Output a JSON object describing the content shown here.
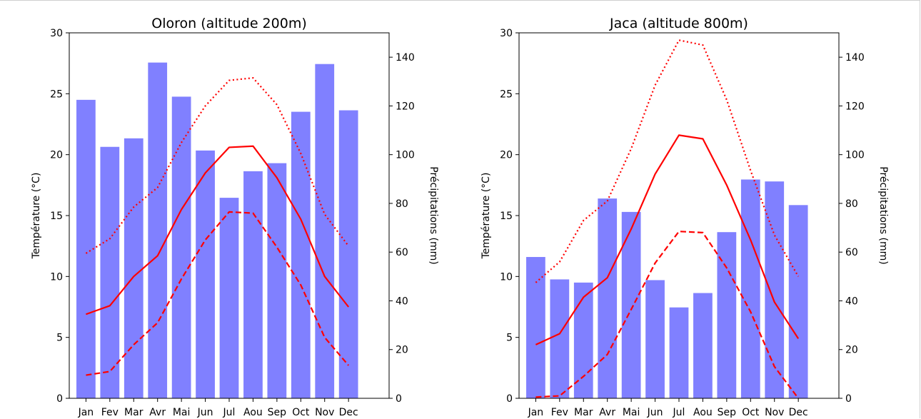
{
  "chart_data": [
    {
      "type": "bar",
      "title": "Oloron (altitude 200m)",
      "categories": [
        "Jan",
        "Fev",
        "Mar",
        "Avr",
        "Mai",
        "Jun",
        "Jul",
        "Aou",
        "Sep",
        "Oct",
        "Nov",
        "Dec"
      ],
      "ylabel": "Température (°C)",
      "y2label": "Précipitations (mm)",
      "ylim": [
        0,
        30
      ],
      "y2lim": [
        0,
        150
      ],
      "yticks": [
        0,
        5,
        10,
        15,
        20,
        25,
        30
      ],
      "y2ticks": [
        0,
        20,
        40,
        60,
        80,
        100,
        120,
        140
      ],
      "bar_color": "#8080ff",
      "line_color": "#ff0000",
      "series": [
        {
          "kind": "bar",
          "axis": "right",
          "values": [
            122.5,
            103.2,
            106.7,
            137.8,
            123.8,
            101.7,
            82.3,
            93.2,
            96.5,
            117.6,
            137.2,
            118.2
          ]
        },
        {
          "kind": "line",
          "style": "solid",
          "axis": "left",
          "values": [
            6.9,
            7.6,
            10.0,
            11.7,
            15.5,
            18.5,
            20.6,
            20.7,
            18.1,
            14.7,
            10.0,
            7.5
          ]
        },
        {
          "kind": "line",
          "style": "dashed",
          "axis": "left",
          "values": [
            1.9,
            2.2,
            4.4,
            6.2,
            9.8,
            13.0,
            15.3,
            15.2,
            12.4,
            9.3,
            5.0,
            2.7
          ]
        },
        {
          "kind": "line",
          "style": "dotted",
          "axis": "left",
          "values": [
            11.9,
            13.1,
            15.7,
            17.3,
            21.0,
            24.0,
            26.1,
            26.3,
            24.1,
            20.1,
            15.1,
            12.5
          ]
        }
      ]
    },
    {
      "type": "bar",
      "title": "Jaca (altitude 800m)",
      "categories": [
        "Jan",
        "Fev",
        "Mar",
        "Avr",
        "Mai",
        "Jun",
        "Jul",
        "Aou",
        "Sep",
        "Oct",
        "Nov",
        "Dec"
      ],
      "ylabel": "Température (°C)",
      "y2label": "Précipitations (mm)",
      "ylim": [
        0,
        30
      ],
      "y2lim": [
        0,
        150
      ],
      "yticks": [
        0,
        5,
        10,
        15,
        20,
        25,
        30
      ],
      "y2ticks": [
        0,
        20,
        40,
        60,
        80,
        100,
        120,
        140
      ],
      "bar_color": "#8080ff",
      "line_color": "#ff0000",
      "series": [
        {
          "kind": "bar",
          "axis": "right",
          "values": [
            58.0,
            48.8,
            47.5,
            82.0,
            76.5,
            48.5,
            37.3,
            43.2,
            68.2,
            89.8,
            89.0,
            79.3
          ]
        },
        {
          "kind": "line",
          "style": "solid",
          "axis": "left",
          "values": [
            4.4,
            5.3,
            8.3,
            9.9,
            13.9,
            18.4,
            21.6,
            21.3,
            17.5,
            13.0,
            7.9,
            4.9
          ]
        },
        {
          "kind": "line",
          "style": "dashed",
          "axis": "left",
          "values": [
            0.1,
            0.2,
            1.8,
            3.6,
            7.3,
            11.1,
            13.7,
            13.6,
            10.7,
            7.1,
            2.6,
            0.0
          ]
        },
        {
          "kind": "line",
          "style": "dotted",
          "axis": "left",
          "values": [
            9.5,
            11.2,
            14.6,
            16.2,
            20.5,
            25.7,
            29.4,
            29.0,
            24.5,
            18.7,
            13.4,
            10.0
          ]
        }
      ]
    }
  ]
}
